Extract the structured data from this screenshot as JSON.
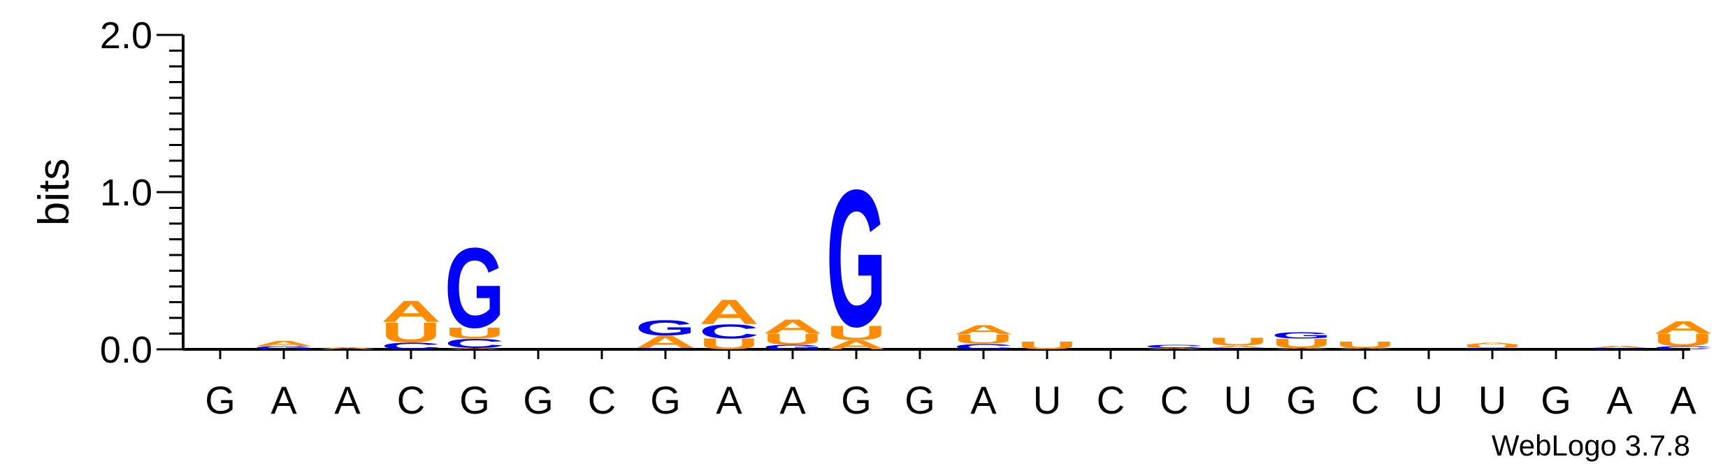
{
  "chart_data": {
    "type": "sequence-logo",
    "ylabel": "bits",
    "ylim": [
      0,
      2.0
    ],
    "yticks": [
      "0.0",
      "1.0",
      "2.0"
    ],
    "credit": "WebLogo 3.7.8",
    "colors": {
      "A": "#ff8c00",
      "U": "#ff8c00",
      "G": "#0000ff",
      "C": "#0000ff"
    },
    "positions": [
      {
        "label": "G",
        "stack": []
      },
      {
        "label": "A",
        "stack": [
          {
            "l": "G",
            "h": 0.02
          },
          {
            "l": "A",
            "h": 0.035
          }
        ]
      },
      {
        "label": "A",
        "stack": [
          {
            "l": "A",
            "h": 0.015
          }
        ]
      },
      {
        "label": "C",
        "stack": [
          {
            "l": "C",
            "h": 0.045
          },
          {
            "l": "U",
            "h": 0.13
          },
          {
            "l": "A",
            "h": 0.14
          }
        ]
      },
      {
        "label": "G",
        "stack": [
          {
            "l": "A",
            "h": 0.01
          },
          {
            "l": "C",
            "h": 0.06
          },
          {
            "l": "U",
            "h": 0.07
          },
          {
            "l": "G",
            "h": 0.52
          }
        ]
      },
      {
        "label": "G",
        "stack": []
      },
      {
        "label": "C",
        "stack": []
      },
      {
        "label": "G",
        "stack": [
          {
            "l": "C",
            "h": 0.01
          },
          {
            "l": "A",
            "h": 0.08
          },
          {
            "l": "G",
            "h": 0.1
          }
        ]
      },
      {
        "label": "A",
        "stack": [
          {
            "l": "U",
            "h": 0.07
          },
          {
            "l": "C",
            "h": 0.09
          },
          {
            "l": "A",
            "h": 0.16
          }
        ]
      },
      {
        "label": "A",
        "stack": [
          {
            "l": "G",
            "h": 0.03
          },
          {
            "l": "U",
            "h": 0.07
          },
          {
            "l": "A",
            "h": 0.09
          }
        ]
      },
      {
        "label": "G",
        "stack": [
          {
            "l": "A",
            "h": 0.06
          },
          {
            "l": "U",
            "h": 0.09
          },
          {
            "l": "G",
            "h": 0.89
          }
        ]
      },
      {
        "label": "G",
        "stack": []
      },
      {
        "label": "A",
        "stack": [
          {
            "l": "C",
            "h": 0.035
          },
          {
            "l": "U",
            "h": 0.06
          },
          {
            "l": "A",
            "h": 0.06
          }
        ]
      },
      {
        "label": "U",
        "stack": [
          {
            "l": "U",
            "h": 0.05
          }
        ]
      },
      {
        "label": "C",
        "stack": []
      },
      {
        "label": "C",
        "stack": [
          {
            "l": "A",
            "h": 0.01
          },
          {
            "l": "C",
            "h": 0.02
          }
        ]
      },
      {
        "label": "U",
        "stack": [
          {
            "l": "C",
            "h": 0.01
          },
          {
            "l": "A",
            "h": 0.015
          },
          {
            "l": "U",
            "h": 0.05
          }
        ]
      },
      {
        "label": "G",
        "stack": [
          {
            "l": "A",
            "h": 0.01
          },
          {
            "l": "U",
            "h": 0.06
          },
          {
            "l": "G",
            "h": 0.04
          }
        ]
      },
      {
        "label": "C",
        "stack": [
          {
            "l": "A",
            "h": 0.01
          },
          {
            "l": "U",
            "h": 0.04
          }
        ]
      },
      {
        "label": "U",
        "stack": []
      },
      {
        "label": "U",
        "stack": [
          {
            "l": "C",
            "h": 0.01
          },
          {
            "l": "U",
            "h": 0.02
          },
          {
            "l": "A",
            "h": 0.015
          }
        ]
      },
      {
        "label": "G",
        "stack": []
      },
      {
        "label": "A",
        "stack": [
          {
            "l": "C",
            "h": 0.01
          },
          {
            "l": "A",
            "h": 0.015
          }
        ]
      },
      {
        "label": "A",
        "stack": [
          {
            "l": "C",
            "h": 0.02
          },
          {
            "l": "U",
            "h": 0.08
          },
          {
            "l": "A",
            "h": 0.08
          }
        ]
      }
    ]
  }
}
